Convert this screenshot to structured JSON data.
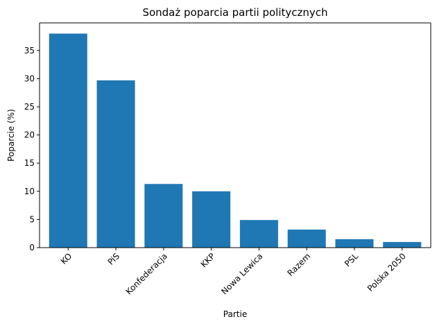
{
  "chart_data": {
    "type": "bar",
    "title": "Sondaż poparcia partii politycznych",
    "xlabel": "Partie",
    "ylabel": "Poparcie (%)",
    "categories": [
      "KO",
      "PiS",
      "Konfederacja",
      "KKP",
      "Nowa Lewica",
      "Razem",
      "PSL",
      "Polska 2050"
    ],
    "values": [
      38.0,
      29.7,
      11.3,
      10.0,
      4.9,
      3.2,
      1.5,
      1.0
    ],
    "ylim": [
      0,
      39.9
    ],
    "yticks": [
      0,
      5,
      10,
      15,
      20,
      25,
      30,
      35
    ],
    "bar_color": "#1f77b4",
    "grid": false,
    "legend": "none"
  }
}
